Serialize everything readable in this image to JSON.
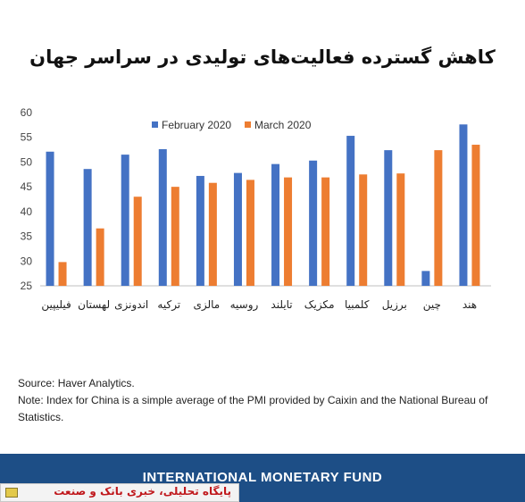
{
  "title": "کاهش گسترده فعالیت‌های تولیدی در سراسر جهان",
  "chart_data": {
    "type": "bar",
    "categories": [
      "فیلیپین",
      "لهستان",
      "اندونزی",
      "ترکیه",
      "مالزی",
      "روسیه",
      "تایلند",
      "مکزیک",
      "کلمبیا",
      "برزیل",
      "چین",
      "هند"
    ],
    "series": [
      {
        "name": "February 2020",
        "color": "#4472c4",
        "values": [
          52.1,
          48.6,
          51.5,
          52.6,
          47.2,
          47.8,
          49.6,
          50.3,
          55.3,
          52.4,
          28.0,
          57.6
        ]
      },
      {
        "name": "March 2020",
        "color": "#ed7d31",
        "values": [
          29.8,
          36.6,
          43.0,
          45.0,
          45.8,
          46.4,
          46.9,
          46.9,
          47.5,
          47.7,
          52.4,
          53.5
        ]
      }
    ],
    "yticks": [
      25,
      30,
      35,
      40,
      45,
      50,
      55,
      60
    ],
    "ylim": [
      25,
      60
    ],
    "legend_position": "top-center",
    "grid": false
  },
  "notes": {
    "source": "Source: Haver Analytics.",
    "note": "Note: Index for China is a simple average of the PMI provided by Caixin and the National Bureau of Statistics."
  },
  "footer": {
    "text": "INTERNATIONAL MONETARY FUND"
  },
  "watermark": {
    "text": "پایگاه تحلیلی، خبری بانک و صنعت"
  }
}
